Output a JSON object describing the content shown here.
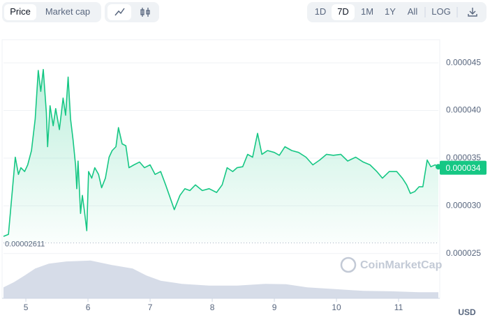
{
  "toolbar": {
    "modes": [
      "Price",
      "Market cap"
    ],
    "ranges": [
      "1D",
      "7D",
      "1M",
      "1Y",
      "All",
      "LOG"
    ]
  },
  "watermark": "CoinMarketCap",
  "currency": "USD",
  "chart_data": {
    "type": "line",
    "color": "#16c784",
    "x": [
      4.64,
      4.72,
      4.79,
      4.83,
      4.88,
      4.92,
      4.98,
      5.03,
      5.09,
      5.15,
      5.2,
      5.24,
      5.28,
      5.33,
      5.35,
      5.39,
      5.44,
      5.48,
      5.54,
      5.6,
      5.64,
      5.68,
      5.72,
      5.76,
      5.8,
      5.82,
      5.84,
      5.88,
      5.91,
      5.94,
      5.98,
      6.01,
      6.06,
      6.11,
      6.17,
      6.22,
      6.28,
      6.34,
      6.39,
      6.45,
      6.49,
      6.55,
      6.61,
      6.66,
      6.74,
      6.83,
      6.91,
      7.0,
      7.08,
      7.17,
      7.25,
      7.31,
      7.39,
      7.48,
      7.56,
      7.64,
      7.73,
      7.84,
      7.95,
      8.07,
      8.16,
      8.24,
      8.33,
      8.4,
      8.49,
      8.57,
      8.65,
      8.73,
      8.8,
      8.89,
      9.0,
      9.08,
      9.17,
      9.28,
      9.39,
      9.51,
      9.62,
      9.73,
      9.84,
      9.95,
      10.07,
      10.18,
      10.31,
      10.43,
      10.54,
      10.65,
      10.74,
      10.85,
      10.97,
      11.06,
      11.13,
      11.19,
      11.26,
      11.33,
      11.39,
      11.46,
      11.52,
      11.59,
      11.64
    ],
    "values": [
      2.68e-05,
      2.7e-05,
      3.22e-05,
      3.51e-05,
      3.33e-05,
      3.4e-05,
      3.36e-05,
      3.43e-05,
      3.58e-05,
      3.91e-05,
      4.42e-05,
      4.2e-05,
      4.43e-05,
      3.98e-05,
      3.62e-05,
      4.05e-05,
      3.84e-05,
      4.02e-05,
      3.8e-05,
      4.13e-05,
      3.95e-05,
      4.35e-05,
      3.91e-05,
      3.69e-05,
      3.43e-05,
      3.18e-05,
      3.47e-05,
      2.92e-05,
      3.11e-05,
      2.96e-05,
      2.74e-05,
      3.36e-05,
      3.29e-05,
      3.4e-05,
      3.33e-05,
      3.19e-05,
      3.29e-05,
      3.51e-05,
      3.58e-05,
      3.62e-05,
      3.82e-05,
      3.65e-05,
      3.63e-05,
      3.4e-05,
      3.43e-05,
      3.46e-05,
      3.4e-05,
      3.43e-05,
      3.33e-05,
      3.36e-05,
      3.22e-05,
      3.11e-05,
      2.96e-05,
      3.11e-05,
      3.18e-05,
      3.16e-05,
      3.22e-05,
      3.16e-05,
      3.18e-05,
      3.14e-05,
      3.22e-05,
      3.4e-05,
      3.36e-05,
      3.4e-05,
      3.41e-05,
      3.54e-05,
      3.51e-05,
      3.76e-05,
      3.54e-05,
      3.58e-05,
      3.56e-05,
      3.53e-05,
      3.62e-05,
      3.58e-05,
      3.56e-05,
      3.51e-05,
      3.43e-05,
      3.48e-05,
      3.54e-05,
      3.53e-05,
      3.54e-05,
      3.47e-05,
      3.51e-05,
      3.46e-05,
      3.43e-05,
      3.36e-05,
      3.29e-05,
      3.36e-05,
      3.36e-05,
      3.29e-05,
      3.22e-05,
      3.13e-05,
      3.15e-05,
      3.2e-05,
      3.2e-05,
      3.48e-05,
      3.41e-05,
      3.43e-05,
      3.41e-05
    ],
    "xlim": [
      4.64,
      11.64
    ],
    "xticks": [
      5,
      6,
      7,
      8,
      9,
      10,
      11
    ],
    "ylim": [
      2.03e-05,
      4.72e-05
    ],
    "yticks": [
      4.5e-05,
      {
        "value": 4e-05,
        "label": "0.000040"
      },
      3.5e-05,
      {
        "value": 3e-05,
        "label": "0.000030"
      },
      2.5e-05
    ],
    "open_price": 2.611e-05,
    "last_price": 3.4e-05,
    "grid": true,
    "volume": {
      "color": "#cfd6e4",
      "ylim": [
        0,
        100
      ],
      "x": [
        4.64,
        4.81,
        4.98,
        5.15,
        5.37,
        5.65,
        6.04,
        6.38,
        6.72,
        6.94,
        7.17,
        7.51,
        7.95,
        8.4,
        8.85,
        9.19,
        9.53,
        9.98,
        10.43,
        10.88,
        11.33,
        11.64
      ],
      "values": [
        25,
        37,
        52,
        68,
        79,
        84,
        86,
        76,
        68,
        52,
        40,
        33,
        29,
        29,
        33,
        32,
        25,
        21,
        17,
        16,
        14,
        14
      ]
    }
  }
}
